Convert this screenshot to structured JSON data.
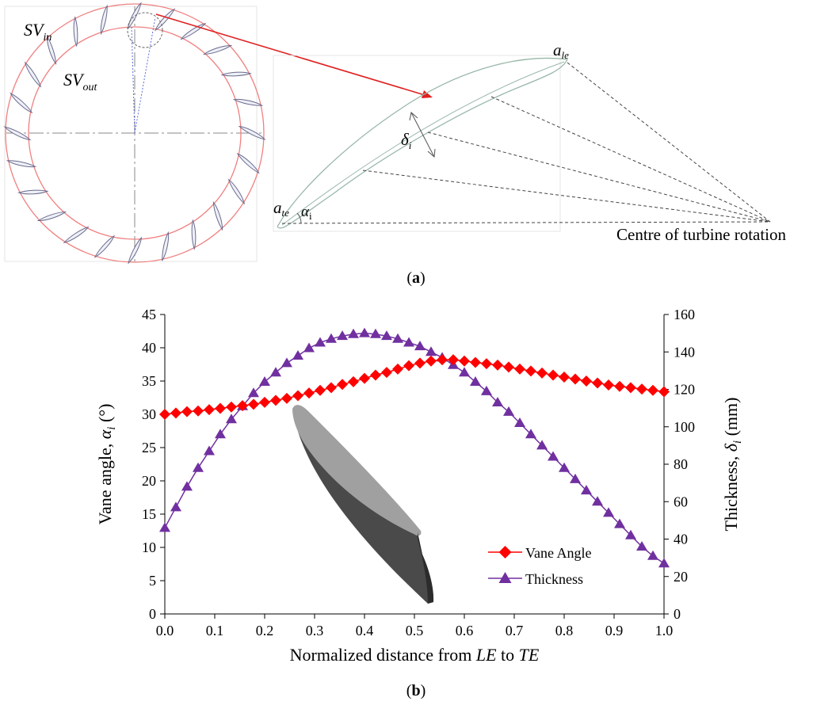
{
  "panel_a": {
    "label_sv_in": "SV",
    "label_sv_in_sub": "in",
    "label_sv_out": "SV",
    "label_sv_out_sub": "out",
    "label_a_le": "a",
    "label_a_le_sub": "le",
    "label_a_te": "a",
    "label_a_te_sub": "te",
    "label_delta": "δ",
    "label_delta_sub": "i",
    "label_alpha": "α",
    "label_alpha_sub": "i",
    "centre_label": "Centre of turbine rotation",
    "caption_open": "(",
    "caption_letter": "a",
    "caption_close": ")",
    "vane_count": 24,
    "colors": {
      "ring": "#f08080",
      "vane": "#6b6b8e",
      "arrow": "#e02020",
      "airfoil": "#9ab8a8"
    }
  },
  "panel_b": {
    "caption_open": "(",
    "caption_letter": "b",
    "caption_close": ")",
    "xlabel_pre": "Normalized distance from ",
    "xlabel_le": "LE",
    "xlabel_mid": " to ",
    "xlabel_te": "TE",
    "ylabel_left_pre": "Vane angle, ",
    "ylabel_left_sym": "α",
    "ylabel_left_sub": "i",
    "ylabel_left_post": " (°)",
    "ylabel_right_pre": "Thickness, ",
    "ylabel_right_sym": "δ",
    "ylabel_right_sub": "i",
    "ylabel_right_post": " (mm)",
    "legend": [
      "Vane Angle",
      "Thickness"
    ],
    "colors": {
      "vane_angle": "#ff0000",
      "thickness": "#7030a0"
    }
  },
  "chart_data": {
    "type": "line",
    "x_ticks": [
      "0.0",
      "0.1",
      "0.2",
      "0.3",
      "0.4",
      "0.5",
      "0.6",
      "0.7",
      "0.8",
      "0.9",
      "1.0"
    ],
    "y_left_ticks": [
      "0",
      "5",
      "10",
      "15",
      "20",
      "25",
      "30",
      "35",
      "40",
      "45"
    ],
    "y_right_ticks": [
      "0",
      "20",
      "40",
      "60",
      "80",
      "100",
      "120",
      "140",
      "160"
    ],
    "xlim": [
      0,
      1
    ],
    "ylim_left": [
      0,
      45
    ],
    "ylim_right": [
      0,
      160
    ],
    "legend_position": "bottom-right",
    "grid": false,
    "series": [
      {
        "name": "Vane Angle",
        "axis": "left",
        "marker": "diamond",
        "x": [
          0.0,
          0.0222,
          0.0444,
          0.0667,
          0.0889,
          0.1111,
          0.1333,
          0.1556,
          0.1778,
          0.2,
          0.2222,
          0.2444,
          0.2667,
          0.2889,
          0.3111,
          0.3333,
          0.3556,
          0.3778,
          0.4,
          0.4222,
          0.4444,
          0.4667,
          0.4889,
          0.5111,
          0.5333,
          0.5556,
          0.5778,
          0.6,
          0.6222,
          0.6444,
          0.6667,
          0.6889,
          0.7111,
          0.7333,
          0.7556,
          0.7778,
          0.8,
          0.8222,
          0.8444,
          0.8667,
          0.8889,
          0.9111,
          0.9333,
          0.9556,
          0.9778,
          1.0
        ],
        "y": [
          30.0,
          30.2,
          30.4,
          30.5,
          30.7,
          30.9,
          31.1,
          31.3,
          31.5,
          31.8,
          32.1,
          32.4,
          32.8,
          33.2,
          33.6,
          34.0,
          34.5,
          34.9,
          35.4,
          35.9,
          36.3,
          36.8,
          37.3,
          37.7,
          38.0,
          38.2,
          38.2,
          38.0,
          37.8,
          37.6,
          37.4,
          37.1,
          36.8,
          36.5,
          36.2,
          35.9,
          35.6,
          35.3,
          35.0,
          34.7,
          34.4,
          34.2,
          34.0,
          33.8,
          33.6,
          33.4
        ]
      },
      {
        "name": "Thickness",
        "axis": "right",
        "marker": "triangle",
        "x": [
          0.0,
          0.0222,
          0.0444,
          0.0667,
          0.0889,
          0.1111,
          0.1333,
          0.1556,
          0.1778,
          0.2,
          0.2222,
          0.2444,
          0.2667,
          0.2889,
          0.3111,
          0.3333,
          0.3556,
          0.3778,
          0.4,
          0.4222,
          0.4444,
          0.4667,
          0.4889,
          0.5111,
          0.5333,
          0.5556,
          0.5778,
          0.6,
          0.6222,
          0.6444,
          0.6667,
          0.6889,
          0.7111,
          0.7333,
          0.7556,
          0.7778,
          0.8,
          0.8222,
          0.8444,
          0.8667,
          0.8889,
          0.9111,
          0.9333,
          0.9556,
          0.9778,
          1.0
        ],
        "y": [
          46,
          57,
          68,
          78,
          87,
          96,
          104,
          111,
          118,
          124,
          129,
          134,
          138,
          142,
          145,
          147,
          148.5,
          149.5,
          150,
          149.5,
          148.5,
          147,
          145,
          143,
          140,
          137,
          133,
          129,
          124,
          119,
          113,
          108,
          102,
          96,
          90,
          84,
          78,
          72,
          66,
          60,
          54,
          48,
          42,
          36,
          31,
          27
        ]
      }
    ]
  }
}
